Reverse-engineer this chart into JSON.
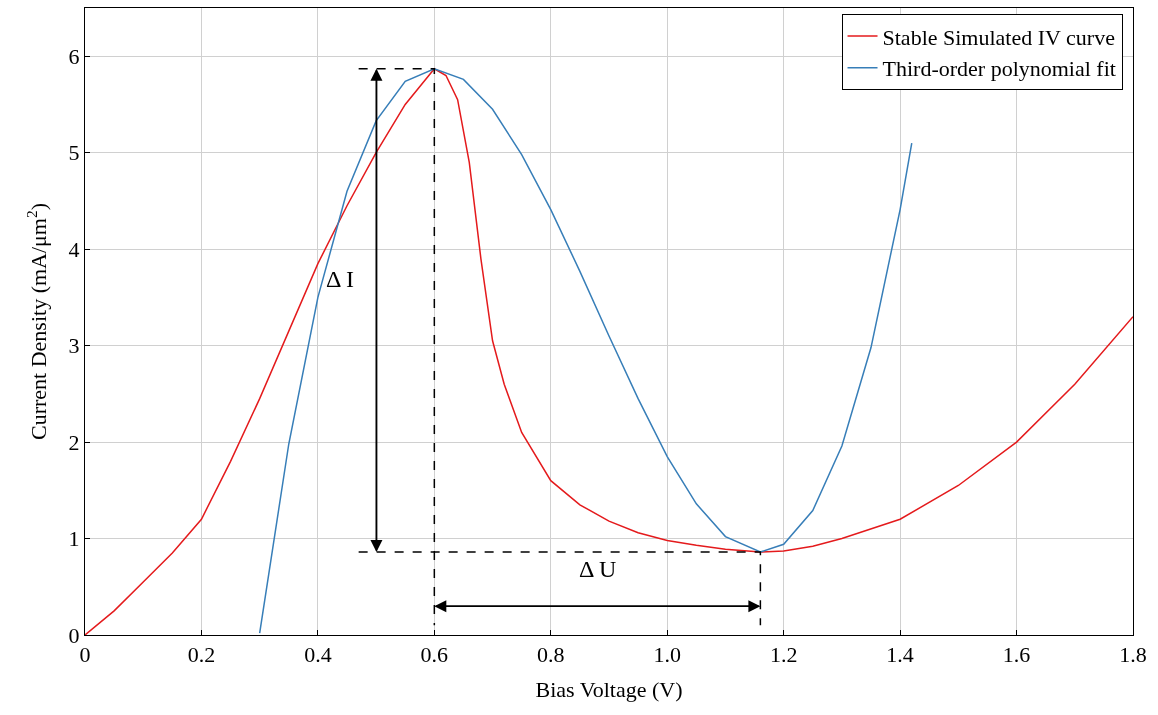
{
  "chart_data": {
    "type": "line",
    "xlabel": "Bias Voltage (V)",
    "ylabel": "Current Density (mA/μm$^{2}$)",
    "xlim": [
      0,
      1.8
    ],
    "ylim": [
      0,
      6.5
    ],
    "xticks": [
      0,
      0.2,
      0.4,
      0.6,
      0.8,
      {
        "value": 1,
        "label": "1.0"
      },
      1.2,
      1.4,
      1.6,
      1.8
    ],
    "yticks": [
      0,
      1,
      2,
      3,
      4,
      5,
      6
    ],
    "grid": true,
    "legend": "top right",
    "series": [
      {
        "name": "Stable Simulated IV curve",
        "color": "#e41a1c",
        "x": [
          0,
          0.05,
          0.1,
          0.15,
          0.2,
          0.25,
          0.3,
          0.35,
          0.4,
          0.45,
          0.5,
          0.55,
          0.6,
          0.62,
          0.64,
          0.66,
          0.68,
          0.7,
          0.72,
          0.75,
          0.8,
          0.85,
          0.9,
          0.95,
          1.0,
          1.05,
          1.1,
          1.16,
          1.2,
          1.25,
          1.3,
          1.4,
          1.5,
          1.6,
          1.7,
          1.8
        ],
        "values": [
          0,
          0.25,
          0.55,
          0.85,
          1.2,
          1.8,
          2.45,
          3.15,
          3.85,
          4.45,
          5.0,
          5.5,
          5.87,
          5.8,
          5.55,
          4.9,
          3.9,
          3.05,
          2.6,
          2.1,
          1.6,
          1.35,
          1.18,
          1.06,
          0.98,
          0.93,
          0.89,
          0.86,
          0.87,
          0.92,
          1.0,
          1.2,
          1.55,
          2.0,
          2.6,
          3.3
        ]
      },
      {
        "name": "Third-order polynomial fit",
        "color": "#377eb8",
        "x": [
          0.3,
          0.35,
          0.4,
          0.45,
          0.5,
          0.55,
          0.6,
          0.65,
          0.7,
          0.75,
          0.8,
          0.85,
          0.9,
          0.95,
          1.0,
          1.05,
          1.1,
          1.16,
          1.2,
          1.25,
          1.3,
          1.35,
          1.4,
          1.42
        ],
        "values": [
          0.02,
          1.98,
          3.5,
          4.6,
          5.33,
          5.74,
          5.87,
          5.76,
          5.45,
          4.98,
          4.41,
          3.77,
          3.1,
          2.45,
          1.85,
          1.36,
          1.02,
          0.86,
          0.94,
          1.29,
          1.96,
          2.98,
          4.41,
          5.1
        ]
      },
      {
        "color": "#000000",
        "line_style": "dashed",
        "x": [
          0.47,
          0.6,
          0.6
        ],
        "values": [
          5.87,
          5.87,
          0.1
        ]
      },
      {
        "color": "#000000",
        "line_style": "dashed",
        "x": [
          0.47,
          1.16,
          1.16
        ],
        "values": [
          0.86,
          0.86,
          0.1
        ]
      }
    ],
    "annotations": [
      "Δ I",
      "Δ U"
    ]
  }
}
